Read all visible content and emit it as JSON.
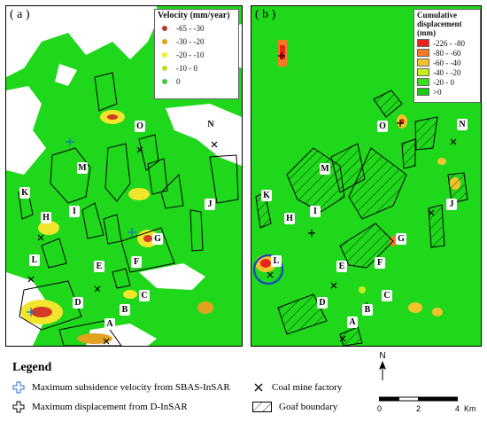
{
  "panels": {
    "a": {
      "label": "( a )"
    },
    "b": {
      "label": "( b )"
    }
  },
  "legend_a": {
    "title": "Velocity (mm/year)",
    "items": [
      {
        "label": "-65 - -30",
        "color": "#b5382a"
      },
      {
        "label": "-30 - -20",
        "color": "#e0a21f"
      },
      {
        "label": "-20 - -10",
        "color": "#f3ec28"
      },
      {
        "label": "-10 - 0",
        "color": "#b4e128"
      },
      {
        "label": "0",
        "color": "#44c743"
      }
    ]
  },
  "legend_b": {
    "title_line1": "Cumulative",
    "title_line2": "displacement (mm)",
    "items": [
      {
        "label": "-226 - -80",
        "color": "#e8231d"
      },
      {
        "label": "-80 - -60",
        "color": "#f47b25"
      },
      {
        "label": "-60 - -40",
        "color": "#f2c32a"
      },
      {
        "label": "-40 - -20",
        "color": "#c6ee1f"
      },
      {
        "label": "-20 - 0",
        "color": "#39e21e"
      },
      {
        "label": ">0",
        "color": "#22c61a"
      }
    ]
  },
  "site_labels": [
    "O",
    "N",
    "M",
    "K",
    "H",
    "I",
    "J",
    "G",
    "L",
    "E",
    "F",
    "C",
    "D",
    "B",
    "A"
  ],
  "legend_bottom": {
    "title": "Legend",
    "sbas": "Maximum subsidence velocity from SBAS-InSAR",
    "dinsar": "Maximum displacement from D-InSAR",
    "factory": "Coal mine factory",
    "goaf": "Goaf boundary"
  },
  "north": "N",
  "scale": {
    "ticks": [
      "0",
      "2",
      "4"
    ],
    "unit": "Km"
  }
}
